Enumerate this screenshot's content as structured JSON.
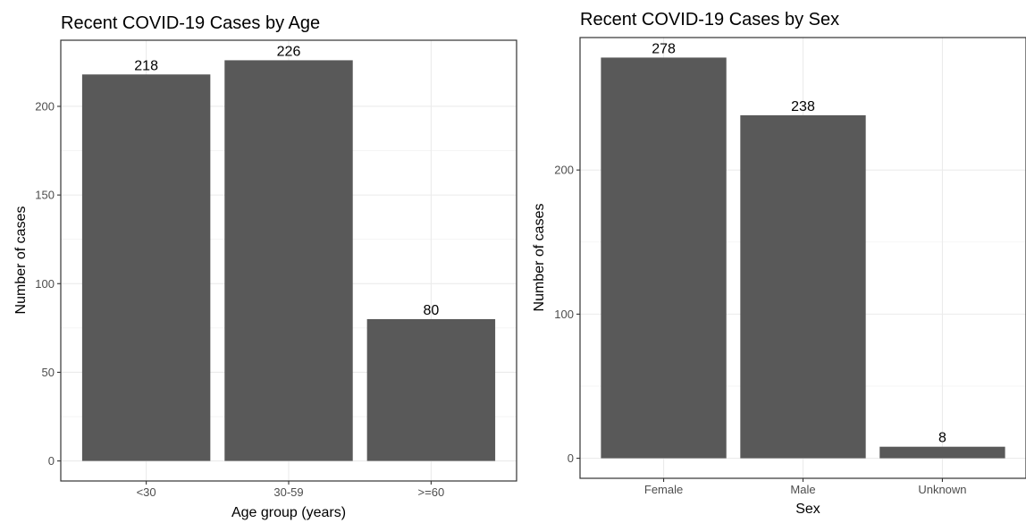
{
  "chart_data": [
    {
      "type": "bar",
      "title": "Recent COVID-19 Cases by Age",
      "xlabel": "Age group (years)",
      "ylabel": "Number of cases",
      "categories": [
        "<30",
        "30-59",
        ">=60"
      ],
      "values": [
        218,
        226,
        80
      ],
      "data_labels": [
        "218",
        "226",
        "80"
      ],
      "yticks": [
        0,
        50,
        100,
        150,
        200
      ],
      "ytick_labels": [
        "0",
        "50",
        "100",
        "150",
        "200"
      ],
      "ylim": [
        -11.3,
        237.3
      ],
      "grid": true,
      "bar_color": "#595959"
    },
    {
      "type": "bar",
      "title": "Recent COVID-19 Cases by Sex",
      "xlabel": "Sex",
      "ylabel": "Number of cases",
      "categories": [
        "Female",
        "Male",
        "Unknown"
      ],
      "values": [
        278,
        238,
        8
      ],
      "data_labels": [
        "278",
        "238",
        "8"
      ],
      "yticks": [
        0,
        100,
        200
      ],
      "ytick_labels": [
        "0",
        "100",
        "200"
      ],
      "ylim": [
        -13.9,
        291.9
      ],
      "grid": true,
      "bar_color": "#595959"
    }
  ]
}
